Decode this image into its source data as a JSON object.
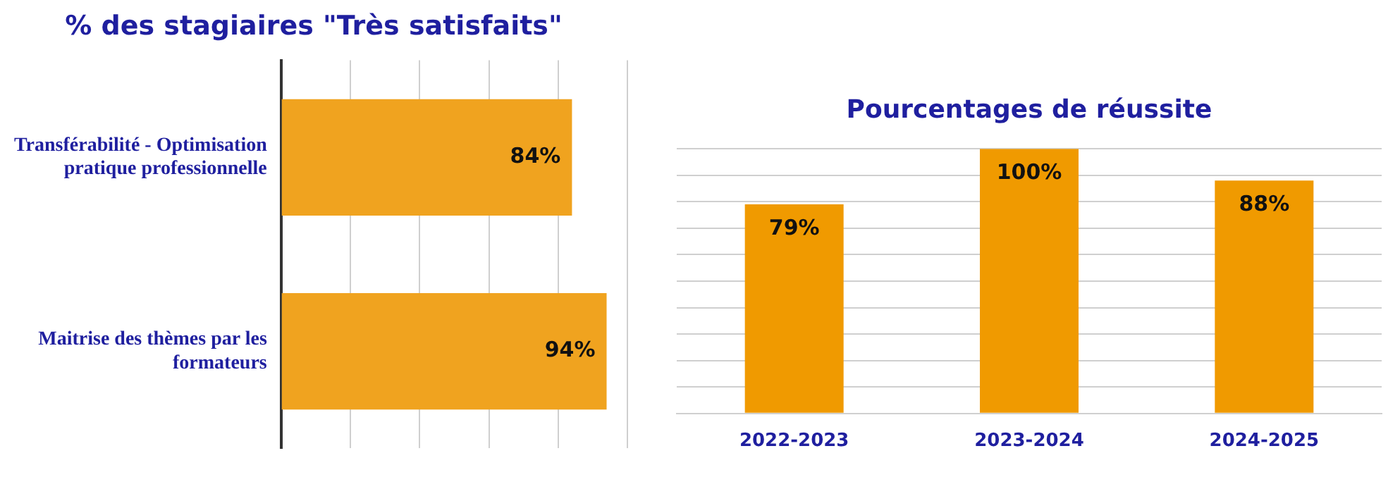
{
  "chart_data": [
    {
      "type": "bar",
      "title": "% des stagiaires \"Très satisfaits\"",
      "orientation": "horizontal",
      "categories": [
        "Transférabilité - Optimisation pratique professionnelle",
        "Maitrise des thèmes par les formateurs"
      ],
      "values": [
        84,
        94
      ],
      "value_labels": [
        "84%",
        "94%"
      ],
      "color": "#f0a31f",
      "xlim": [
        0,
        100
      ],
      "xticks": [
        {
          "value": 0,
          "label": null
        },
        {
          "value": 20,
          "label": null
        },
        {
          "value": 40,
          "label": null
        },
        {
          "value": 60,
          "label": null
        },
        {
          "value": 80,
          "label": null
        },
        {
          "value": 100,
          "label": null
        }
      ],
      "grid": "x",
      "tick_labels": "y",
      "legend": false
    },
    {
      "type": "bar",
      "title": "Pourcentages de réussite",
      "categories": [
        "2022-2023",
        "2023-2024",
        "2024-2025"
      ],
      "values": [
        79,
        100,
        88
      ],
      "value_labels": [
        "79%",
        "100%",
        "88%"
      ],
      "color": "#f09a00",
      "ylim": [
        0,
        100
      ],
      "yticks": [
        {
          "value": 0,
          "label": null
        },
        {
          "value": 10,
          "label": null
        },
        {
          "value": 20,
          "label": null
        },
        {
          "value": 30,
          "label": null
        },
        {
          "value": 40,
          "label": null
        },
        {
          "value": 50,
          "label": null
        },
        {
          "value": 60,
          "label": null
        },
        {
          "value": 70,
          "label": null
        },
        {
          "value": 80,
          "label": null
        },
        {
          "value": 90,
          "label": null
        },
        {
          "value": 100,
          "label": null
        }
      ],
      "grid": "y",
      "tick_labels": "x",
      "legend": false
    }
  ]
}
